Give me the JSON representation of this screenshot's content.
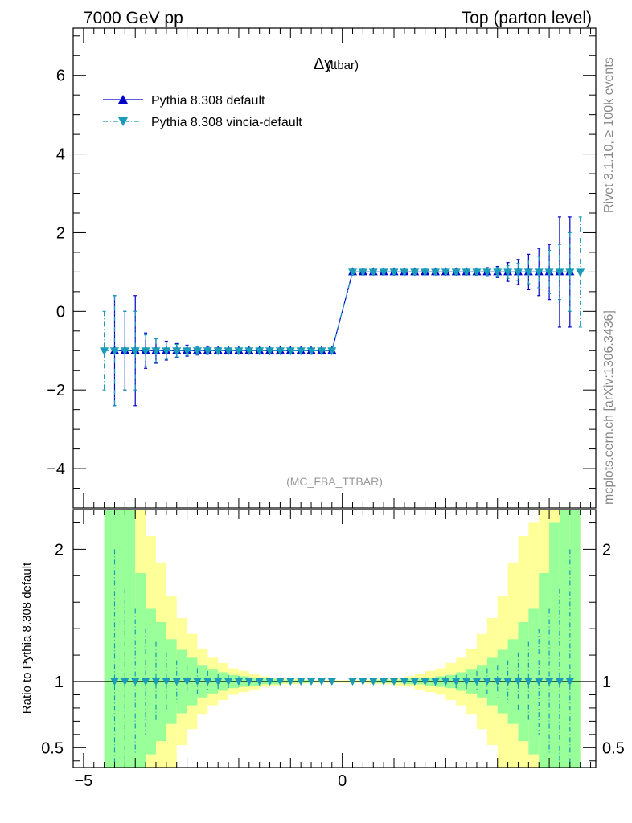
{
  "header": {
    "left": "7000 GeV pp",
    "right": "Top (parton level)"
  },
  "side_labels": {
    "rivet": "Rivet 3.1.10, ≥ 100k events",
    "mcplots": "mcplots.cern.ch [arXiv:1306.3436]"
  },
  "colors": {
    "default": "#0000cc",
    "vincia": "#1a9bb8",
    "band_inner": "#99ff99",
    "band_outer": "#ffff99"
  },
  "chart_data": [
    {
      "type": "line",
      "title": "Δy",
      "title_sub": "(ttbar)",
      "analysis_label": "(MC_FBA_TTBAR)",
      "xlim": [
        -5.2,
        4.9
      ],
      "ylim": [
        -5.0,
        7.2
      ],
      "y_ticks": [
        -4,
        -2,
        0,
        2,
        4,
        6
      ],
      "y_tick_labels": [
        "−4",
        "−2",
        "0",
        "2",
        "4",
        "6"
      ],
      "legend_position": "top-left",
      "series": [
        {
          "name": "Pythia 8.308 default",
          "style": "solid",
          "marker": "triangle-up",
          "x": [
            -4.4,
            -4.2,
            -4.0,
            -3.8,
            -3.6,
            -3.4,
            -3.2,
            -3.0,
            -2.8,
            -2.6,
            -2.4,
            -2.2,
            -2.0,
            -1.8,
            -1.6,
            -1.4,
            -1.2,
            -1.0,
            -0.8,
            -0.6,
            -0.4,
            -0.2,
            0.2,
            0.4,
            0.6,
            0.8,
            1.0,
            1.2,
            1.4,
            1.6,
            1.8,
            2.0,
            2.2,
            2.4,
            2.6,
            2.8,
            3.0,
            3.2,
            3.4,
            3.6,
            3.8,
            4.0,
            4.2,
            4.4
          ],
          "y": [
            -1,
            -1,
            -1,
            -1,
            -1,
            -1,
            -1,
            -1,
            -1,
            -1,
            -1,
            -1,
            -1,
            -1,
            -1,
            -1,
            -1,
            -1,
            -1,
            -1,
            -1,
            -1,
            1,
            1,
            1,
            1,
            1,
            1,
            1,
            1,
            1,
            1,
            1,
            1,
            1,
            1,
            1,
            1,
            1,
            1,
            1,
            1,
            1,
            1
          ],
          "err": [
            1.4,
            1.0,
            1.4,
            0.45,
            0.32,
            0.24,
            0.18,
            0.14,
            0.11,
            0.09,
            0.07,
            0.06,
            0.05,
            0.04,
            0.03,
            0.02,
            0.02,
            0.02,
            0.01,
            0.01,
            0.01,
            0.01,
            0.01,
            0.01,
            0.01,
            0.01,
            0.02,
            0.02,
            0.02,
            0.03,
            0.04,
            0.05,
            0.06,
            0.07,
            0.09,
            0.11,
            0.14,
            0.24,
            0.32,
            0.45,
            0.6,
            0.7,
            1.4,
            1.4
          ]
        },
        {
          "name": "Pythia 8.308 vincia-default",
          "style": "dashdot",
          "marker": "triangle-down",
          "x": [
            -4.6,
            -4.4,
            -4.2,
            -4.0,
            -3.8,
            -3.6,
            -3.4,
            -3.2,
            -3.0,
            -2.8,
            -2.6,
            -2.4,
            -2.2,
            -2.0,
            -1.8,
            -1.6,
            -1.4,
            -1.2,
            -1.0,
            -0.8,
            -0.6,
            -0.4,
            -0.2,
            0.2,
            0.4,
            0.6,
            0.8,
            1.0,
            1.2,
            1.4,
            1.6,
            1.8,
            2.0,
            2.2,
            2.4,
            2.6,
            2.8,
            3.0,
            3.2,
            3.4,
            3.6,
            3.8,
            4.0,
            4.2,
            4.4,
            4.6
          ],
          "y": [
            -1,
            -1,
            -1,
            -1,
            -1,
            -1,
            -1,
            -1,
            -1,
            -1,
            -1,
            -1,
            -1,
            -1,
            -1,
            -1,
            -1,
            -1,
            -1,
            -1,
            -1,
            -1,
            -1,
            1,
            1,
            1,
            1,
            1,
            1,
            1,
            1,
            1,
            1,
            1,
            1,
            1,
            1,
            1,
            1,
            1,
            1,
            1,
            1,
            1,
            1,
            1
          ],
          "err": [
            1.0,
            1.4,
            1.0,
            1.0,
            0.4,
            0.3,
            0.22,
            0.16,
            0.12,
            0.1,
            0.08,
            0.06,
            0.05,
            0.04,
            0.03,
            0.03,
            0.02,
            0.02,
            0.02,
            0.01,
            0.01,
            0.01,
            0.01,
            0.01,
            0.01,
            0.01,
            0.01,
            0.02,
            0.02,
            0.02,
            0.03,
            0.03,
            0.04,
            0.05,
            0.06,
            0.08,
            0.1,
            0.12,
            0.16,
            0.22,
            0.3,
            0.4,
            0.55,
            0.7,
            1.0,
            1.4
          ]
        }
      ]
    },
    {
      "type": "line",
      "ylabel": "Ratio to Pythia 8.308 default",
      "xlim": [
        -5.2,
        4.9
      ],
      "ylim": [
        0.35,
        2.3
      ],
      "x_ticks": [
        -5,
        0
      ],
      "x_tick_labels": [
        "−5",
        "0"
      ],
      "y_ticks": [
        0.5,
        1,
        2
      ],
      "y_tick_labels": [
        "0.5",
        "1",
        "2"
      ],
      "reference_line": 1,
      "bands": {
        "bin_lo": [
          -4.6,
          -4.4,
          -4.2,
          -4.0,
          -3.8,
          -3.6,
          -3.4,
          -3.2,
          -3.0,
          -2.8,
          -2.6,
          -2.4,
          -2.2,
          -2.0,
          -1.8,
          -1.6,
          -1.4,
          -1.2,
          -1.0,
          -0.8,
          -0.6,
          -0.4,
          -0.2,
          0.0,
          0.2,
          0.4,
          0.6,
          0.8,
          1.0,
          1.2,
          1.4,
          1.6,
          1.8,
          2.0,
          2.2,
          2.4,
          2.6,
          2.8,
          3.0,
          3.2,
          3.4,
          3.6,
          3.8,
          4.0,
          4.2,
          4.4
        ],
        "bin_hi": [
          -4.4,
          -4.2,
          -4.0,
          -3.8,
          -3.6,
          -3.4,
          -3.2,
          -3.0,
          -2.8,
          -2.6,
          -2.4,
          -2.2,
          -2.0,
          -1.8,
          -1.6,
          -1.4,
          -1.2,
          -1.0,
          -0.8,
          -0.6,
          -0.4,
          -0.2,
          0.0,
          0.2,
          0.4,
          0.6,
          0.8,
          1.0,
          1.2,
          1.4,
          1.6,
          1.8,
          2.0,
          2.2,
          2.4,
          2.6,
          2.8,
          3.0,
          3.2,
          3.4,
          3.6,
          3.8,
          4.0,
          4.2,
          4.4,
          4.6
        ],
        "inner_half_width": [
          2.0,
          2.0,
          2.0,
          0.82,
          0.55,
          0.45,
          0.32,
          0.24,
          0.18,
          0.12,
          0.09,
          0.07,
          0.05,
          0.04,
          0.03,
          0.02,
          0.02,
          0.01,
          0.01,
          0.01,
          0.005,
          0.005,
          0.005,
          0.005,
          0.005,
          0.005,
          0.01,
          0.01,
          0.01,
          0.02,
          0.02,
          0.03,
          0.04,
          0.05,
          0.07,
          0.09,
          0.12,
          0.18,
          0.24,
          0.32,
          0.45,
          0.55,
          0.82,
          1.2,
          2.0,
          2.0
        ],
        "outer_half_width": [
          2.0,
          2.0,
          2.0,
          2.0,
          1.1,
          0.9,
          0.65,
          0.48,
          0.36,
          0.25,
          0.18,
          0.14,
          0.1,
          0.08,
          0.06,
          0.04,
          0.03,
          0.02,
          0.02,
          0.015,
          0.01,
          0.01,
          0.01,
          0.01,
          0.01,
          0.015,
          0.02,
          0.02,
          0.03,
          0.04,
          0.06,
          0.08,
          0.1,
          0.14,
          0.18,
          0.25,
          0.36,
          0.48,
          0.65,
          0.9,
          1.1,
          1.2,
          1.3,
          2.0,
          2.0,
          2.0
        ]
      },
      "series": [
        {
          "name": "Pythia 8.308 vincia-default",
          "marker": "triangle-down",
          "x": [
            -4.4,
            -4.2,
            -4.0,
            -3.8,
            -3.6,
            -3.4,
            -3.2,
            -3.0,
            -2.8,
            -2.6,
            -2.4,
            -2.2,
            -2.0,
            -1.8,
            -1.6,
            -1.4,
            -1.2,
            -1.0,
            -0.8,
            -0.6,
            -0.4,
            -0.2,
            0.2,
            0.4,
            0.6,
            0.8,
            1.0,
            1.2,
            1.4,
            1.6,
            1.8,
            2.0,
            2.2,
            2.4,
            2.6,
            2.8,
            3.0,
            3.2,
            3.4,
            3.6,
            3.8,
            4.0,
            4.2,
            4.4
          ],
          "y": [
            1,
            1,
            1,
            1,
            1,
            1,
            1,
            1,
            1,
            1,
            1,
            1,
            1,
            1,
            1,
            1,
            1,
            1,
            1,
            1,
            1,
            1,
            1,
            1,
            1,
            1,
            1,
            1,
            1,
            1,
            1,
            1,
            1,
            1,
            1,
            1,
            1,
            1,
            1,
            1,
            1,
            1,
            1,
            1
          ],
          "err": [
            1.0,
            0.7,
            0.55,
            0.4,
            0.3,
            0.22,
            0.16,
            0.12,
            0.1,
            0.08,
            0.06,
            0.05,
            0.04,
            0.03,
            0.03,
            0.02,
            0.02,
            0.02,
            0.01,
            0.01,
            0.01,
            0.01,
            0.01,
            0.01,
            0.01,
            0.01,
            0.02,
            0.02,
            0.02,
            0.03,
            0.03,
            0.04,
            0.05,
            0.06,
            0.08,
            0.1,
            0.12,
            0.16,
            0.22,
            0.3,
            0.4,
            0.55,
            0.7,
            1.0
          ]
        }
      ]
    }
  ]
}
